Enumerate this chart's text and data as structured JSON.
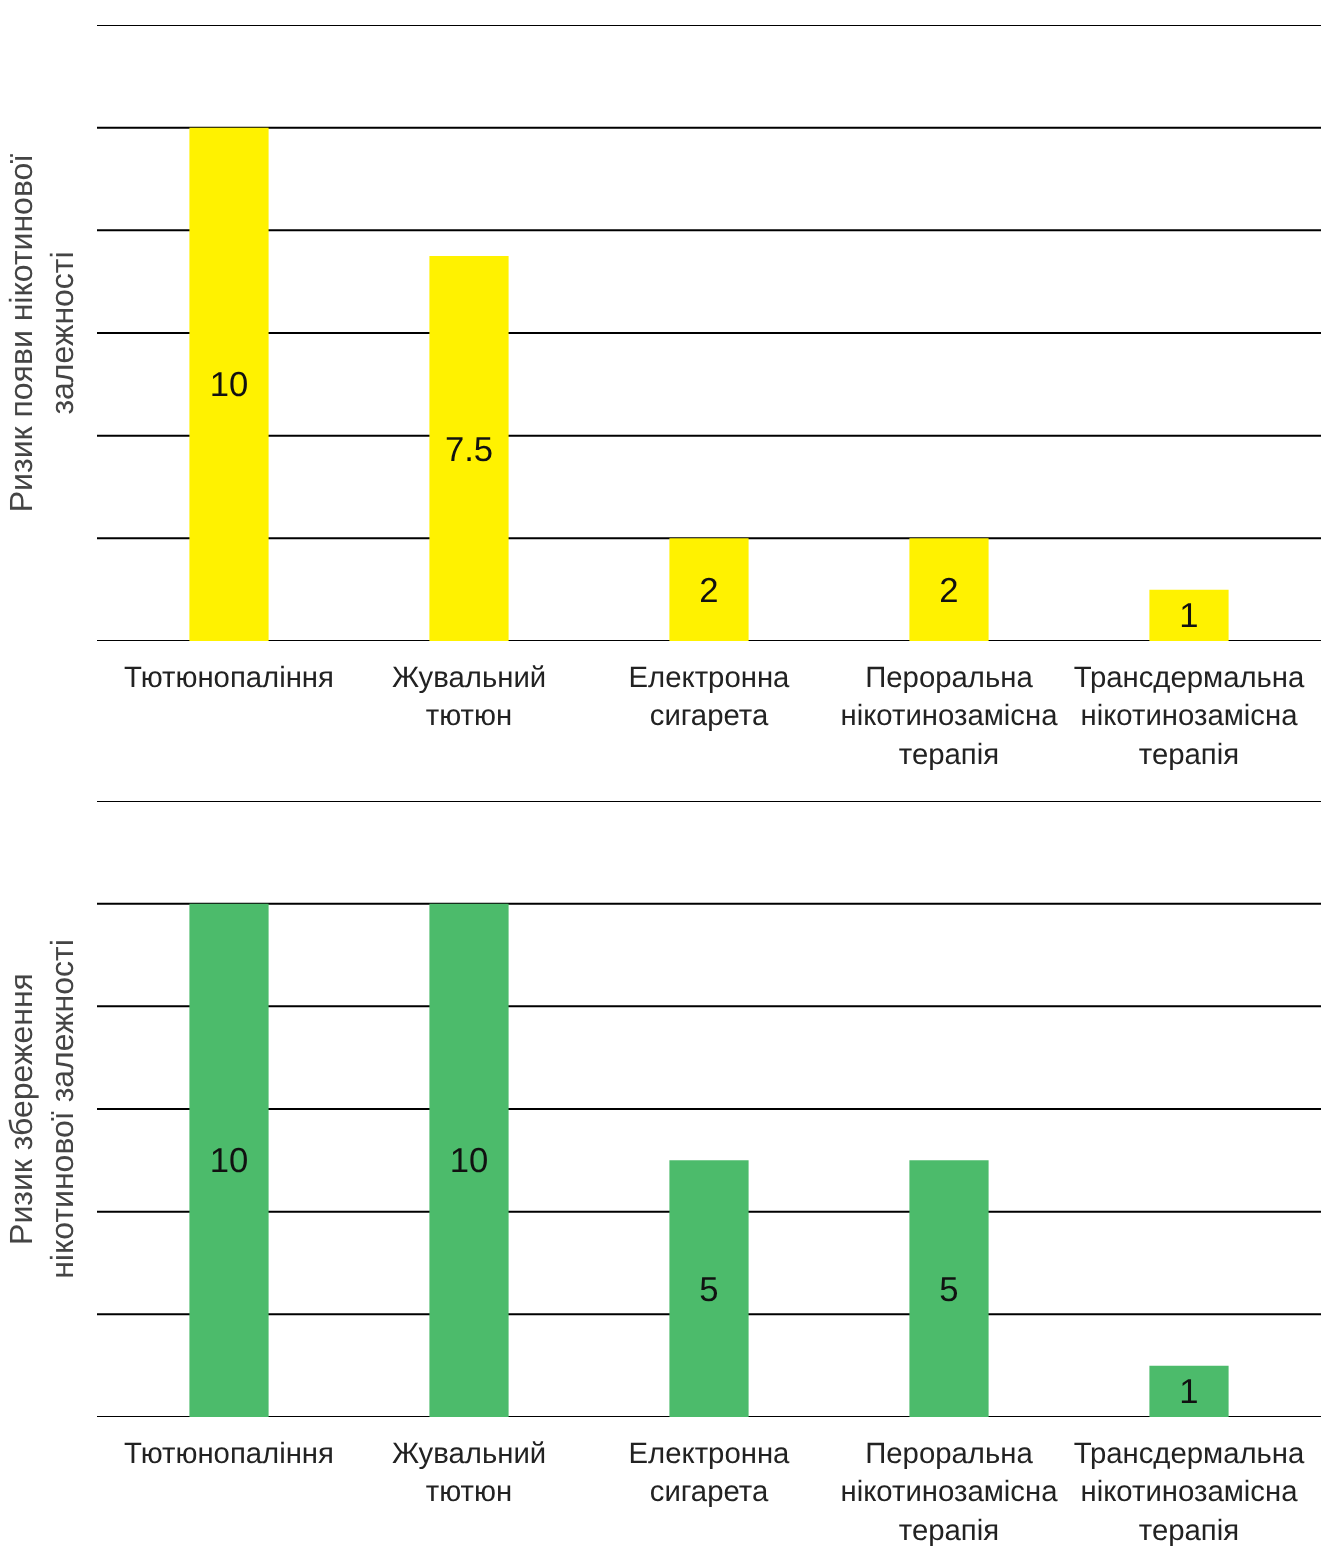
{
  "chart_data": [
    {
      "type": "bar",
      "ylabel": "Ризик появи нікотинової\nзалежності",
      "categories": [
        "Тютюнопаління",
        "Жувальний тютюн",
        "Електронна сигарета",
        "Пероральна нікотинозамісна терапія",
        "Трансдермальна нікотинозамісна терапія"
      ],
      "values": [
        10,
        7.5,
        2,
        2,
        1
      ],
      "color": "#fff200",
      "ylim": [
        0,
        12
      ],
      "yticks": [
        {
          "value": 0,
          "label": null
        },
        {
          "value": 2,
          "label": null
        },
        {
          "value": 4,
          "label": null
        },
        {
          "value": 6,
          "label": null
        },
        {
          "value": 8,
          "label": null
        },
        {
          "value": 10,
          "label": null
        },
        {
          "value": 12,
          "label": null
        }
      ],
      "grid": "y",
      "tick_labels": "x",
      "data_labels": true
    },
    {
      "type": "bar",
      "ylabel": "Ризик збереження\nнікотинової залежності",
      "categories": [
        "Тютюнопаління",
        "Жувальний тютюн",
        "Електронна сигарета",
        "Пероральна нікотинозамісна терапія",
        "Трансдермальна нікотинозамісна терапія"
      ],
      "values": [
        10,
        10,
        5,
        5,
        1
      ],
      "color": "#4cbb6b",
      "ylim": [
        0,
        12
      ],
      "yticks": [
        {
          "value": 0,
          "label": null
        },
        {
          "value": 2,
          "label": null
        },
        {
          "value": 4,
          "label": null
        },
        {
          "value": 6,
          "label": null
        },
        {
          "value": 8,
          "label": null
        },
        {
          "value": 10,
          "label": null
        },
        {
          "value": 12,
          "label": null
        }
      ],
      "grid": "y",
      "tick_labels": "x",
      "data_labels": true
    }
  ]
}
